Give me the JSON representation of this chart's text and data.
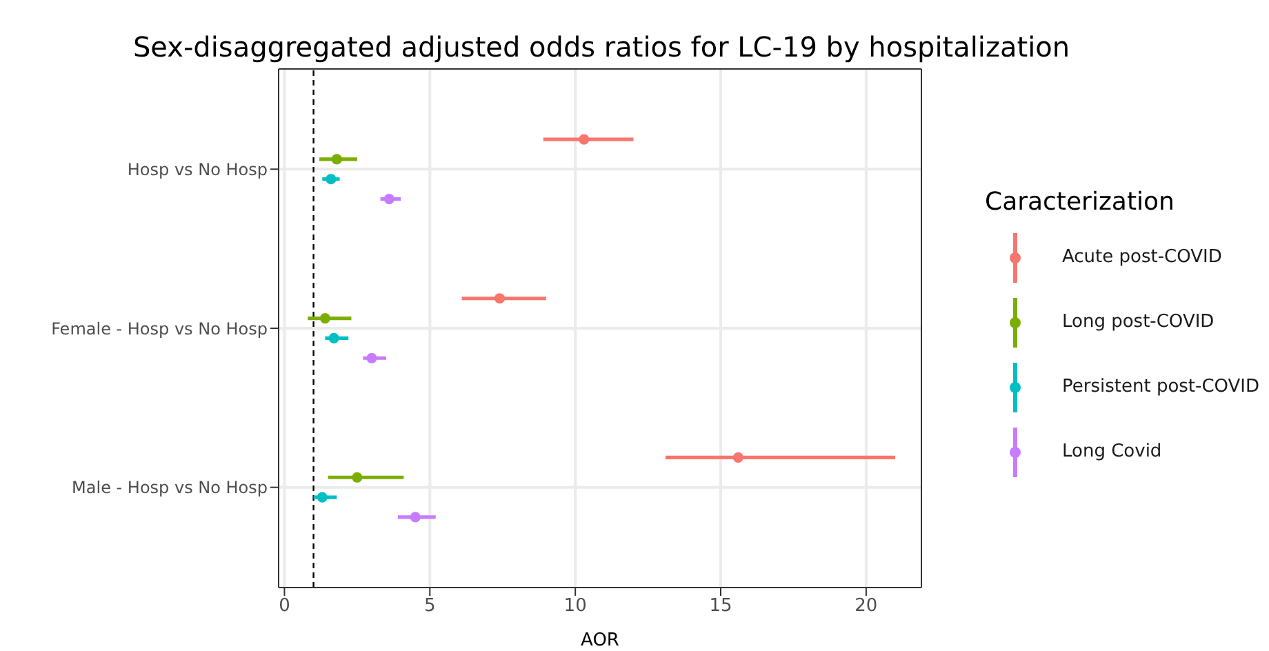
{
  "chart_data": {
    "type": "scatter",
    "orientation": "horizontal",
    "title": "Sex-disaggregated adjusted odds ratios for LC-19 by hospitalization",
    "xlabel": "AOR",
    "legend_title": "Caracterization",
    "categories": [
      "Hosp vs No Hosp",
      "Female - Hosp vs No Hosp",
      "Male - Hosp vs No Hosp"
    ],
    "series": [
      {
        "name": "Acute post-COVID",
        "color": "#f8766d",
        "values": [
          10.3,
          7.4,
          15.6
        ],
        "errors": [
          [
            8.9,
            12.0
          ],
          [
            6.1,
            9.0
          ],
          [
            13.1,
            21.0
          ]
        ]
      },
      {
        "name": "Long post-COVID",
        "color": "#7cae00",
        "values": [
          1.8,
          1.4,
          2.5
        ],
        "errors": [
          [
            1.2,
            2.5
          ],
          [
            0.8,
            2.3
          ],
          [
            1.5,
            4.1
          ]
        ]
      },
      {
        "name": "Persistent post-COVID",
        "color": "#00bfc4",
        "values": [
          1.6,
          1.7,
          1.3
        ],
        "errors": [
          [
            1.3,
            1.9
          ],
          [
            1.4,
            2.2
          ],
          [
            1.0,
            1.8
          ]
        ]
      },
      {
        "name": "Long Covid",
        "color": "#c77cff",
        "values": [
          3.6,
          3.0,
          4.5
        ],
        "errors": [
          [
            3.3,
            4.0
          ],
          [
            2.7,
            3.5
          ],
          [
            3.9,
            5.2
          ]
        ]
      }
    ],
    "xlim": [
      -0.2,
      21.9
    ],
    "xticks": [
      0,
      5,
      10,
      15,
      20
    ],
    "ref_lines": [
      {
        "axis": "x",
        "value": 1,
        "color": "#000000",
        "line_style": "dashed"
      }
    ],
    "grid": true,
    "legend": "right",
    "marker": "circle"
  }
}
